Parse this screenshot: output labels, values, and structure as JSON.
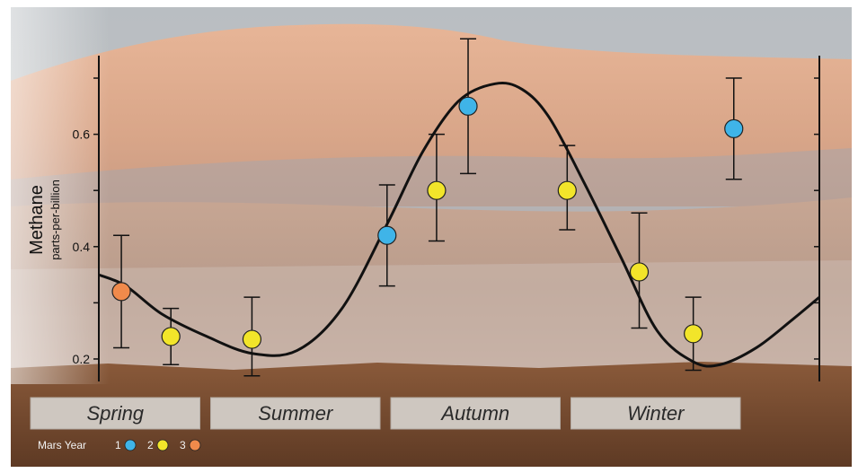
{
  "chart_data": {
    "type": "scatter",
    "title": "",
    "xlabel": "",
    "ylabel": "Methane",
    "ylabel_sub": "parts-per-billion",
    "ylim": [
      0.16,
      0.74
    ],
    "xlim": [
      0,
      8
    ],
    "y_ticks": [
      0.2,
      0.4,
      0.6
    ],
    "y_tick_labels": [
      "0.2",
      "0.4",
      "0.6"
    ],
    "seasons": [
      {
        "label": "Spring",
        "x_start": 0,
        "x_end": 2
      },
      {
        "label": "Summer",
        "x_start": 2,
        "x_end": 4
      },
      {
        "label": "Autumn",
        "x_start": 4,
        "x_end": 6
      },
      {
        "label": "Winter",
        "x_start": 6,
        "x_end": 8
      }
    ],
    "legend": {
      "title": "Mars Year",
      "placement": "bottom-left",
      "entries": [
        {
          "label": "1",
          "color": "#3fb4e8"
        },
        {
          "label": "2",
          "color": "#f2e52a"
        },
        {
          "label": "3",
          "color": "#f08a4b"
        }
      ]
    },
    "series": [
      {
        "year": 1,
        "color": "#3fb4e8",
        "points": [
          {
            "x": 3.2,
            "y": 0.42,
            "err_lo": 0.33,
            "err_hi": 0.51
          },
          {
            "x": 4.1,
            "y": 0.65,
            "err_lo": 0.53,
            "err_hi": 0.77
          },
          {
            "x": 7.05,
            "y": 0.61,
            "err_lo": 0.52,
            "err_hi": 0.7
          }
        ]
      },
      {
        "year": 2,
        "color": "#f2e52a",
        "points": [
          {
            "x": 0.8,
            "y": 0.24,
            "err_lo": 0.19,
            "err_hi": 0.29
          },
          {
            "x": 1.7,
            "y": 0.235,
            "err_lo": 0.17,
            "err_hi": 0.31
          },
          {
            "x": 3.75,
            "y": 0.5,
            "err_lo": 0.41,
            "err_hi": 0.6
          },
          {
            "x": 5.2,
            "y": 0.5,
            "err_lo": 0.43,
            "err_hi": 0.58
          },
          {
            "x": 6.0,
            "y": 0.355,
            "err_lo": 0.255,
            "err_hi": 0.46
          },
          {
            "x": 6.6,
            "y": 0.245,
            "err_lo": 0.18,
            "err_hi": 0.31
          }
        ]
      },
      {
        "year": 3,
        "color": "#f08a4b",
        "points": [
          {
            "x": 0.25,
            "y": 0.32,
            "err_lo": 0.22,
            "err_hi": 0.42
          }
        ]
      }
    ],
    "fit_curve": {
      "description_free": true,
      "x": [
        0,
        0.3,
        0.7,
        1.2,
        1.7,
        2.2,
        2.7,
        3.2,
        3.6,
        4.0,
        4.4,
        4.7,
        5.0,
        5.4,
        5.8,
        6.2,
        6.6,
        6.9,
        7.3,
        7.7,
        8.0
      ],
      "y": [
        0.35,
        0.33,
        0.28,
        0.24,
        0.21,
        0.215,
        0.29,
        0.44,
        0.57,
        0.66,
        0.69,
        0.68,
        0.63,
        0.51,
        0.38,
        0.25,
        0.195,
        0.19,
        0.22,
        0.27,
        0.31
      ]
    }
  }
}
